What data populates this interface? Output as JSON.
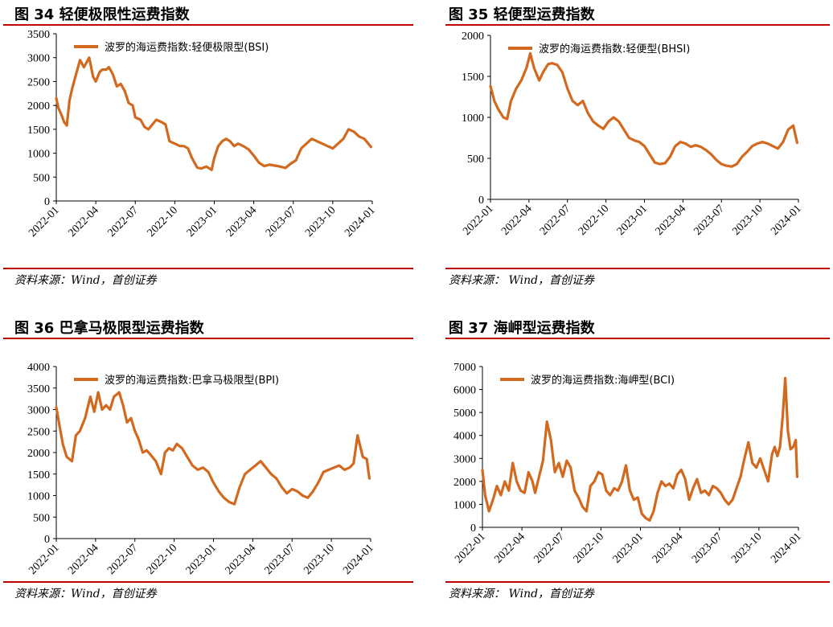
{
  "panels": [
    {
      "title": "图 34 轻便极限性运费指数",
      "source": "资料来源：Wind，首创证券",
      "chart_data": {
        "type": "line",
        "ylim": [
          0,
          3500
        ],
        "yticks": [
          "0",
          "500",
          "1000",
          "1500",
          "2000",
          "2500",
          "3000",
          "3500"
        ],
        "xticks": [
          "2022-01",
          "2022-04",
          "2022-07",
          "2022-10",
          "2023-01",
          "2023-04",
          "2023-07",
          "2023-10",
          "2024-01"
        ],
        "series": [
          {
            "name": "波罗的海运费指数:轻便极限型(BSI)",
            "color": "#d2691e",
            "x": [
              0,
              0.15,
              0.4,
              0.6,
              0.8,
              1.0,
              1.2,
              1.5,
              1.8,
              2.1,
              2.5,
              2.8,
              3.0,
              3.3,
              3.5,
              3.8,
              4.0,
              4.3,
              4.6,
              4.9,
              5.2,
              5.5,
              5.8,
              6.0,
              6.4,
              6.7,
              7.0,
              7.3,
              7.6,
              8.0,
              8.3,
              8.6,
              9.0,
              9.4,
              9.7,
              10.0,
              10.3,
              10.7,
              11.0,
              11.4,
              11.8,
              12.0,
              12.3,
              12.6,
              12.9,
              13.2,
              13.5,
              13.8,
              14.2,
              14.6,
              15.0,
              15.4,
              15.8,
              16.2,
              16.6,
              17.0,
              17.4,
              17.8,
              18.2,
              18.6,
              19.0,
              19.4,
              19.8,
              20.2,
              20.6,
              21.0,
              21.4,
              21.8,
              22.2,
              22.6,
              23.0,
              23.4,
              23.7,
              23.9
            ],
            "values": [
              2150,
              1950,
              1800,
              1650,
              1580,
              2100,
              2350,
              2650,
              2950,
              2800,
              3000,
              2600,
              2500,
              2700,
              2750,
              2750,
              2800,
              2650,
              2400,
              2450,
              2300,
              2050,
              2000,
              1750,
              1700,
              1550,
              1500,
              1600,
              1700,
              1650,
              1600,
              1250,
              1200,
              1150,
              1150,
              1100,
              900,
              700,
              680,
              720,
              650,
              900,
              1150,
              1250,
              1300,
              1250,
              1150,
              1200,
              1150,
              1080,
              950,
              800,
              730,
              760,
              740,
              720,
              690,
              780,
              850,
              1100,
              1200,
              1300,
              1250,
              1200,
              1150,
              1100,
              1200,
              1300,
              1500,
              1450,
              1350,
              1300,
              1200,
              1130
            ]
          }
        ]
      }
    },
    {
      "title": "图 35 轻便型运费指数",
      "source": "资料来源：  Wind，首创证券",
      "chart_data": {
        "type": "line",
        "ylim": [
          0,
          2000
        ],
        "yticks": [
          "0",
          "500",
          "1000",
          "1500",
          "2000"
        ],
        "xticks": [
          "2022-01",
          "2022-04",
          "2022-07",
          "2022-10",
          "2023-01",
          "2023-04",
          "2023-07",
          "2023-10",
          "2024-01"
        ],
        "series": [
          {
            "name": "波罗的海运费指数:轻便型(BHSI)",
            "color": "#d2691e",
            "x": [
              0,
              0.3,
              0.6,
              1.0,
              1.3,
              1.6,
              2.0,
              2.4,
              2.8,
              3.1,
              3.4,
              3.8,
              4.1,
              4.5,
              4.8,
              5.2,
              5.6,
              6.0,
              6.4,
              6.8,
              7.2,
              7.6,
              8.0,
              8.4,
              8.8,
              9.2,
              9.6,
              10.0,
              10.4,
              10.8,
              11.2,
              11.6,
              12.0,
              12.4,
              12.8,
              13.2,
              13.6,
              14.0,
              14.4,
              14.8,
              15.2,
              15.6,
              16.0,
              16.4,
              16.8,
              17.2,
              17.6,
              18.0,
              18.4,
              18.8,
              19.2,
              19.6,
              20.0,
              20.4,
              20.8,
              21.2,
              21.6,
              22.0,
              22.4,
              22.8,
              23.2,
              23.6,
              23.9
            ],
            "values": [
              1380,
              1200,
              1100,
              1000,
              980,
              1200,
              1350,
              1450,
              1600,
              1780,
              1600,
              1450,
              1550,
              1650,
              1660,
              1640,
              1550,
              1350,
              1200,
              1150,
              1200,
              1050,
              950,
              900,
              860,
              950,
              1000,
              950,
              850,
              750,
              720,
              700,
              650,
              550,
              450,
              430,
              440,
              520,
              650,
              700,
              680,
              640,
              660,
              640,
              600,
              550,
              480,
              430,
              410,
              400,
              430,
              520,
              580,
              650,
              680,
              700,
              680,
              650,
              620,
              700,
              850,
              900,
              690
            ]
          }
        ]
      }
    },
    {
      "title": "图 36 巴拿马极限型运费指数",
      "source": "资料来源：Wind，首创证券",
      "chart_data": {
        "type": "line",
        "ylim": [
          0,
          4000
        ],
        "yticks": [
          "0",
          "500",
          "1000",
          "1500",
          "2000",
          "2500",
          "3000",
          "3500",
          "4000"
        ],
        "xticks": [
          "2022-01",
          "2022-04",
          "2022-07",
          "2022-10",
          "2023-01",
          "2023-04",
          "2023-07",
          "2023-10",
          "2024-01"
        ],
        "series": [
          {
            "name": "波罗的海运费指数:巴拿马极限型(BPI)",
            "color": "#d2691e",
            "x": [
              0,
              0.2,
              0.5,
              0.8,
              1.2,
              1.5,
              1.8,
              2.2,
              2.6,
              2.9,
              3.2,
              3.5,
              3.8,
              4.1,
              4.4,
              4.8,
              5.1,
              5.4,
              5.7,
              6.0,
              6.3,
              6.6,
              6.9,
              7.2,
              7.6,
              8.0,
              8.3,
              8.6,
              8.9,
              9.2,
              9.6,
              10.0,
              10.4,
              10.8,
              11.2,
              11.6,
              12.0,
              12.4,
              12.8,
              13.2,
              13.6,
              14.0,
              14.4,
              14.8,
              15.2,
              15.6,
              16.0,
              16.4,
              16.8,
              17.2,
              17.6,
              18.0,
              18.4,
              18.8,
              19.2,
              19.6,
              20.0,
              20.4,
              20.8,
              21.2,
              21.6,
              22.0,
              22.4,
              22.7,
              23.0,
              23.4,
              23.7,
              23.9
            ],
            "values": [
              3050,
              2700,
              2200,
              1900,
              1800,
              2400,
              2500,
              2800,
              3300,
              2950,
              3400,
              3000,
              3100,
              3000,
              3300,
              3400,
              3100,
              2700,
              2800,
              2500,
              2300,
              2000,
              2050,
              1950,
              1800,
              1500,
              2000,
              2100,
              2050,
              2200,
              2100,
              1900,
              1700,
              1600,
              1650,
              1550,
              1300,
              1100,
              950,
              850,
              800,
              1200,
              1500,
              1600,
              1700,
              1800,
              1650,
              1500,
              1400,
              1200,
              1050,
              1150,
              1100,
              1000,
              950,
              1100,
              1300,
              1550,
              1600,
              1650,
              1700,
              1600,
              1650,
              1750,
              2400,
              1900,
              1850,
              1400
            ]
          }
        ]
      }
    },
    {
      "title": "图 37 海岬型运费指数",
      "source": "资料来源：  Wind，首创证券",
      "chart_data": {
        "type": "line",
        "ylim": [
          0,
          7000
        ],
        "yticks": [
          "0",
          "1000",
          "2000",
          "3000",
          "4000",
          "5000",
          "6000",
          "7000"
        ],
        "xticks": [
          "2022-01",
          "2022-04",
          "2022-07",
          "2022-10",
          "2023-01",
          "2023-04",
          "2023-07",
          "2023-10",
          "2024-01"
        ],
        "series": [
          {
            "name": "波罗的海运费指数:海岬型(BCI)",
            "color": "#d2691e",
            "x": [
              0,
              0.2,
              0.5,
              0.8,
              1.1,
              1.4,
              1.7,
              2.0,
              2.3,
              2.6,
              2.9,
              3.2,
              3.5,
              3.8,
              4.0,
              4.3,
              4.6,
              4.9,
              5.2,
              5.5,
              5.8,
              6.1,
              6.4,
              6.7,
              7.0,
              7.3,
              7.6,
              7.9,
              8.2,
              8.5,
              8.8,
              9.1,
              9.4,
              9.7,
              10.0,
              10.3,
              10.6,
              10.9,
              11.2,
              11.5,
              11.8,
              12.1,
              12.4,
              12.7,
              13.0,
              13.3,
              13.6,
              13.9,
              14.2,
              14.5,
              14.8,
              15.1,
              15.4,
              15.7,
              16.0,
              16.3,
              16.6,
              16.9,
              17.2,
              17.5,
              17.8,
              18.1,
              18.4,
              18.7,
              19.0,
              19.3,
              19.6,
              19.9,
              20.2,
              20.5,
              20.8,
              21.1,
              21.4,
              21.7,
              22.0,
              22.2,
              22.4,
              22.6,
              22.8,
              23.0,
              23.2,
              23.4,
              23.6,
              23.8,
              23.9
            ],
            "values": [
              2500,
              1400,
              700,
              1200,
              1800,
              1400,
              2000,
              1600,
              2800,
              2000,
              1600,
              1500,
              2400,
              2000,
              1500,
              2200,
              2900,
              4600,
              3800,
              2400,
              2800,
              2200,
              2900,
              2600,
              1600,
              1300,
              900,
              700,
              1800,
              2000,
              2400,
              2300,
              1600,
              1400,
              1700,
              1600,
              2000,
              2700,
              1600,
              1200,
              1300,
              600,
              400,
              300,
              700,
              1500,
              2000,
              1800,
              1900,
              1700,
              2300,
              2500,
              2100,
              1200,
              1700,
              2100,
              1500,
              1600,
              1400,
              1800,
              1700,
              1500,
              1200,
              1000,
              1200,
              1700,
              2200,
              3000,
              3700,
              2800,
              2600,
              3000,
              2500,
              2000,
              3200,
              3500,
              3100,
              3500,
              4800,
              6500,
              4200,
              3400,
              3500,
              3800,
              2200
            ]
          }
        ]
      }
    }
  ]
}
